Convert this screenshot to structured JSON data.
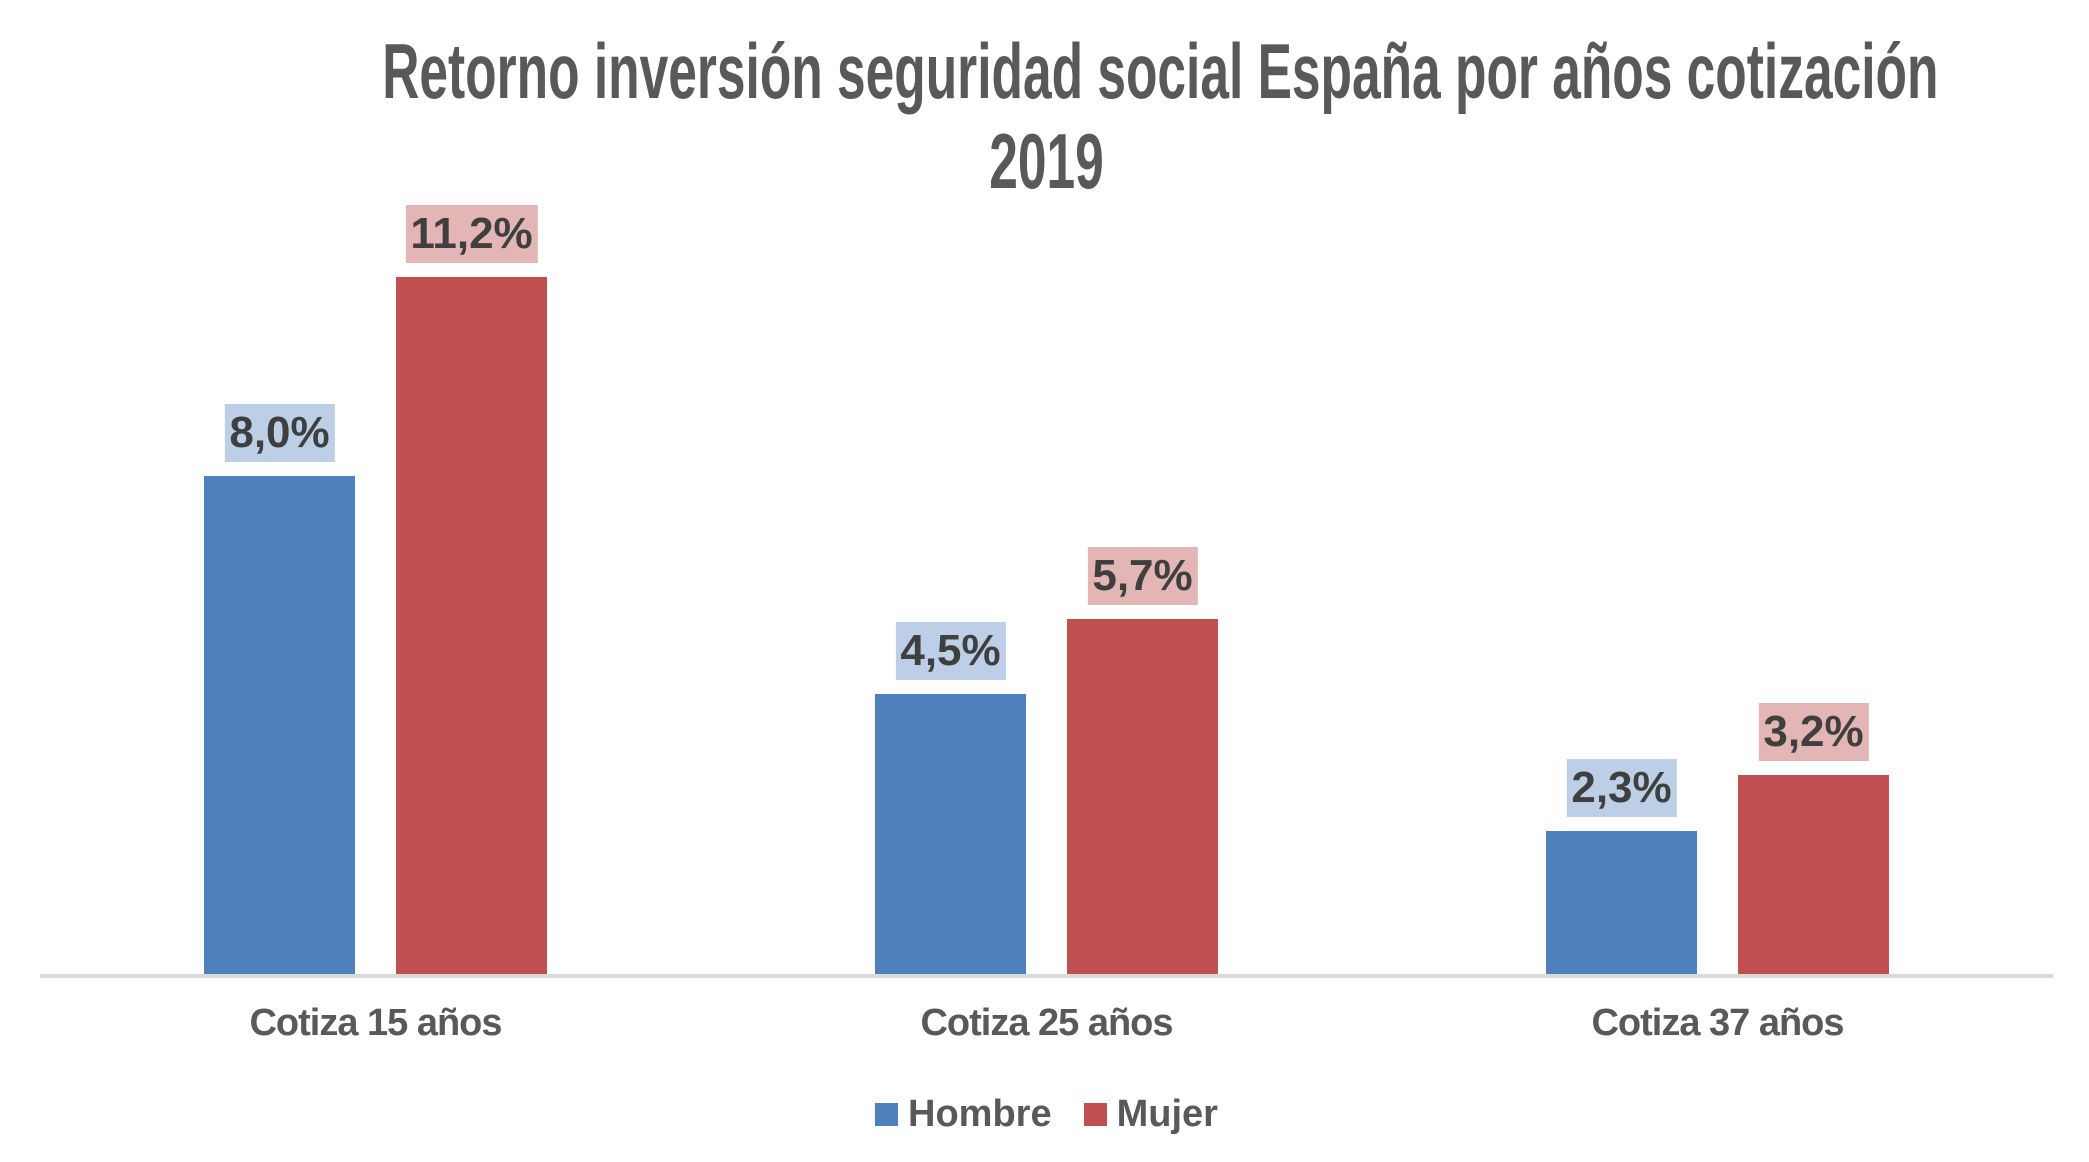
{
  "chart_data": {
    "type": "bar",
    "title": "Retorno inversión seguridad social España por años cotización",
    "subtitle": "2019",
    "categories": [
      "Cotiza 15 años",
      "Cotiza 25 años",
      "Cotiza 37 años"
    ],
    "series": [
      {
        "name": "Hombre",
        "color": "#4D80BC",
        "label_bg": "#BDCFE6",
        "values": [
          8.0,
          4.5,
          2.3
        ],
        "value_labels": [
          "8,0%",
          "4,5%",
          "2,3%"
        ]
      },
      {
        "name": "Mujer",
        "color": "#BF504F",
        "label_bg": "#E3B6B5",
        "values": [
          11.2,
          5.7,
          3.2
        ],
        "value_labels": [
          "11,2%",
          "5,7%",
          "3,2%"
        ]
      }
    ],
    "ylim": [
      0,
      13.42
    ],
    "grid": false,
    "legend_position": "bottom",
    "axis_line_color": "#D9D9D9",
    "title_color": "#595959",
    "value_text_color": "#3F3F3F"
  }
}
